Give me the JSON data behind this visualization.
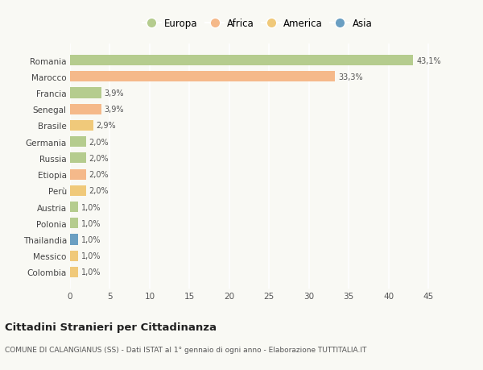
{
  "countries": [
    "Colombia",
    "Messico",
    "Thailandia",
    "Polonia",
    "Austria",
    "Perù",
    "Etiopia",
    "Russia",
    "Germania",
    "Brasile",
    "Senegal",
    "Francia",
    "Marocco",
    "Romania"
  ],
  "values": [
    1.0,
    1.0,
    1.0,
    1.0,
    1.0,
    2.0,
    2.0,
    2.0,
    2.0,
    2.9,
    3.9,
    3.9,
    33.3,
    43.1
  ],
  "labels": [
    "1,0%",
    "1,0%",
    "1,0%",
    "1,0%",
    "1,0%",
    "2,0%",
    "2,0%",
    "2,0%",
    "2,0%",
    "2,9%",
    "3,9%",
    "3,9%",
    "33,3%",
    "43,1%"
  ],
  "colors": [
    "#f0c97a",
    "#f0c97a",
    "#6b9fc2",
    "#b5cc8e",
    "#b5cc8e",
    "#f0c97a",
    "#f5b98a",
    "#b5cc8e",
    "#b5cc8e",
    "#f0c97a",
    "#f5b98a",
    "#b5cc8e",
    "#f5b98a",
    "#b5cc8e"
  ],
  "legend": {
    "Europa": "#b5cc8e",
    "Africa": "#f5b98a",
    "America": "#f0c97a",
    "Asia": "#6b9fc2"
  },
  "title": "Cittadini Stranieri per Cittadinanza",
  "subtitle": "COMUNE DI CALANGIANUS (SS) - Dati ISTAT al 1° gennaio di ogni anno - Elaborazione TUTTITALIA.IT",
  "xlim": [
    0,
    47
  ],
  "xticks": [
    0,
    5,
    10,
    15,
    20,
    25,
    30,
    35,
    40,
    45
  ],
  "background_color": "#f9f9f4",
  "grid_color": "#ffffff",
  "bar_height": 0.65
}
